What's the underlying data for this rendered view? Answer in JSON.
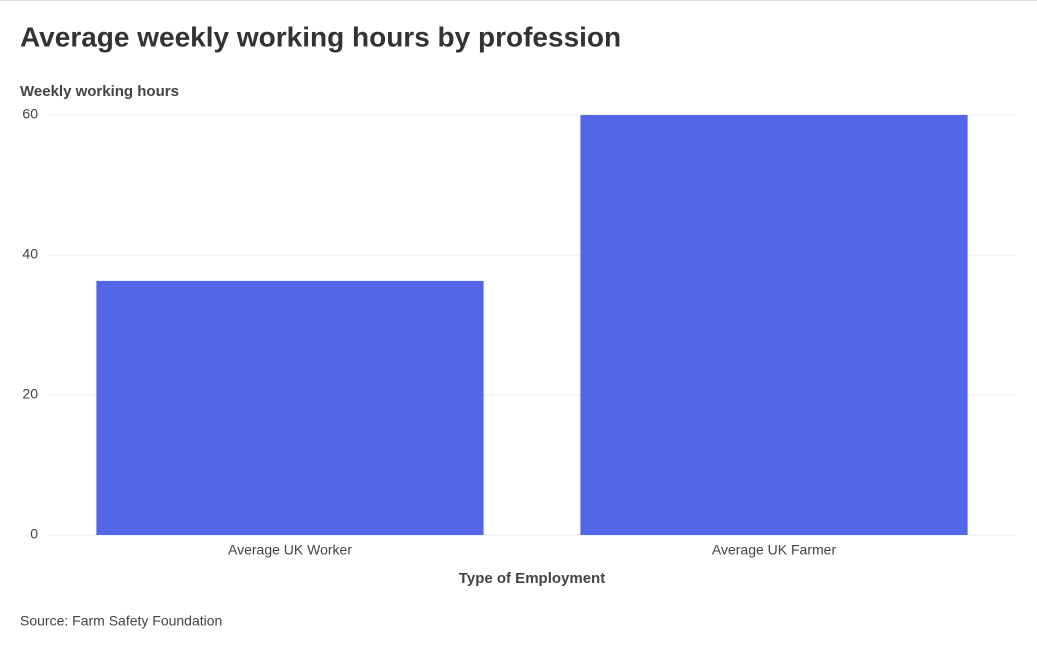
{
  "chart_data": {
    "type": "bar",
    "title": "Average weekly working hours by profession",
    "y_label": "Weekly working hours",
    "x_label": "Type of Employment",
    "source": "Source: Farm Safety Foundation",
    "categories": [
      "Average UK Worker",
      "Average UK Farmer"
    ],
    "values": [
      36.3,
      60
    ],
    "color": "#5167e8",
    "ylim": [
      0,
      60
    ],
    "yticks": [
      0,
      20,
      40,
      60
    ],
    "grid": true
  }
}
